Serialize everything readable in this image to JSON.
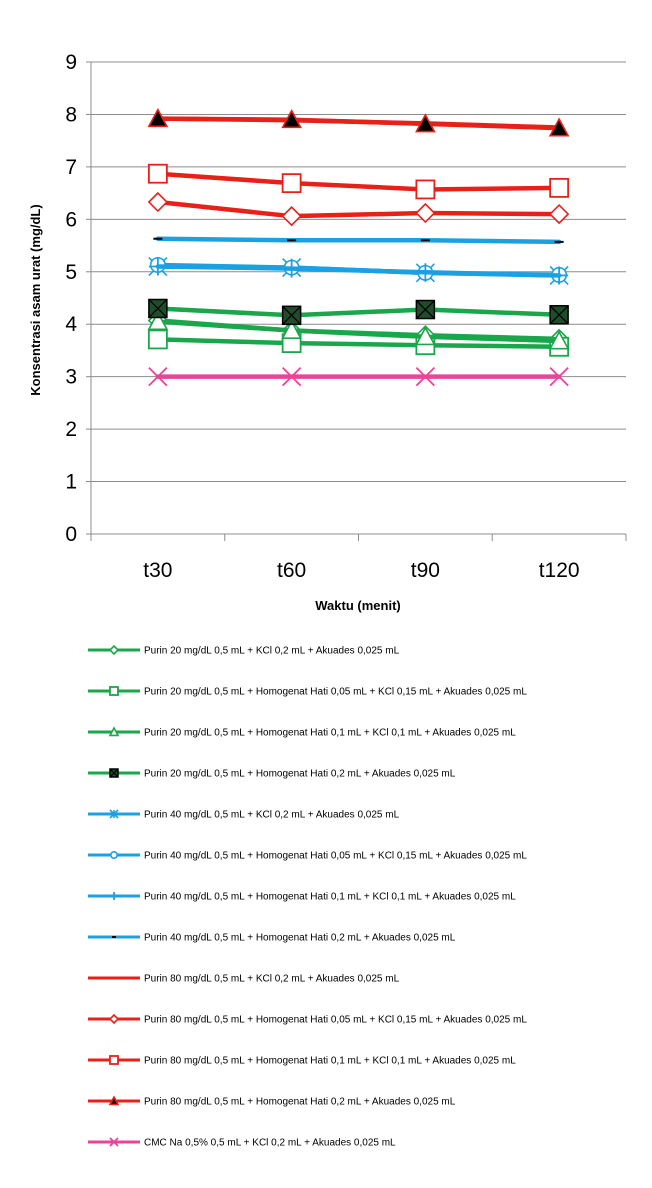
{
  "chart_data": {
    "type": "line",
    "title": "",
    "xlabel": "Waktu (menit)",
    "ylabel": "Konsentrasi asam urat (mg/dL)",
    "categories": [
      "t30",
      "t60",
      "t90",
      "t120"
    ],
    "ylim": [
      0,
      9
    ],
    "yticks": [
      "0",
      "1",
      "2",
      "3",
      "4",
      "5",
      "6",
      "7",
      "8",
      "9"
    ],
    "grid": true,
    "legend_position": "bottom",
    "series": [
      {
        "name": "Purin 20 mg/dL 0,5 mL + KCl 0,2 mL + Akuades 0,025 mL",
        "color": "#1aa64a",
        "marker": "diamond",
        "values": [
          4.07,
          3.88,
          3.79,
          3.72
        ]
      },
      {
        "name": "Purin 20 mg/dL 0,5 mL + Homogenat Hati 0,05 mL + KCl 0,15 mL + Akuades 0,025 mL",
        "color": "#1aa64a",
        "marker": "square-open",
        "values": [
          3.71,
          3.64,
          3.6,
          3.57
        ]
      },
      {
        "name": "Purin 20 mg/dL 0,5 mL + Homogenat Hati 0,1 mL + KCl 0,1 mL + Akuades 0,025 mL",
        "color": "#1aa64a",
        "marker": "triangle-open",
        "values": [
          4.05,
          3.88,
          3.76,
          3.68
        ]
      },
      {
        "name": "Purin 20  mg/dL 0,5 mL + Homogenat Hati 0,2 mL + Akuades 0,025 mL",
        "color": "#1aa64a",
        "marker": "square-x",
        "values": [
          4.3,
          4.17,
          4.28,
          4.18
        ]
      },
      {
        "name": "Purin 40 mg/dL 0,5 mL + KCl 0,2 mL + Akuades 0,025 mL",
        "color": "#1ba1e2",
        "marker": "star",
        "values": [
          5.1,
          5.08,
          4.98,
          4.93
        ]
      },
      {
        "name": "Purin 40 mg/dL 0,5 mL + Homogenat Hati 0,05 mL + KCl 0,15 mL + Akuades 0,025 mL",
        "color": "#1ba1e2",
        "marker": "circle-open",
        "values": [
          5.13,
          5.08,
          4.98,
          4.94
        ]
      },
      {
        "name": "Purin 40 mg/dL 0,5 mL + Homogenat Hati 0,1 mL + KCl 0,1 mL + Akuades 0,025 mL",
        "color": "#1ba1e2",
        "marker": "plus",
        "values": [
          5.1,
          5.06,
          4.99,
          4.93
        ]
      },
      {
        "name": "Purin 40  mg/dL 0,5 mL + Homogenat Hati 0,2 mL + Akuades 0,025 mL",
        "color": "#1ba1e2",
        "marker": "dash",
        "values": [
          5.63,
          5.6,
          5.6,
          5.57
        ]
      },
      {
        "name": "Purin 80 mg/dL 0,5 mL + KCl 0,2 mL + Akuades 0,025 mL",
        "color": "#e8201a",
        "marker": "none",
        "values": [
          7.92,
          7.89,
          7.83,
          7.75
        ]
      },
      {
        "name": "Purin 80 mg/dL 0,5 mL + Homogenat Hati 0,05 mL + KCl 0,15 mL + Akuades 0,025 mL",
        "color": "#e8201a",
        "marker": "diamond",
        "values": [
          6.33,
          6.06,
          6.12,
          6.1
        ]
      },
      {
        "name": "Purin 80 mg/dL 0,5 mL + Homogenat Hati 0,1 mL + KCl 0,1 mL + Akuades 0,025 mL",
        "color": "#e8201a",
        "marker": "square-open",
        "values": [
          6.87,
          6.69,
          6.57,
          6.6
        ]
      },
      {
        "name": "Purin 80  mg/dL 0,5 mL + Homogenat Hati 0,2 mL + Akuades 0,025 mL",
        "color": "#e8201a",
        "marker": "triangle-filled",
        "values": [
          7.92,
          7.9,
          7.82,
          7.74
        ]
      },
      {
        "name": "CMC Na 0,5% 0,5 mL + KCl 0,2 mL + Akuades 0,025 mL",
        "color": "#e8449a",
        "marker": "x",
        "values": [
          3.0,
          3.0,
          3.0,
          3.0
        ]
      }
    ]
  }
}
